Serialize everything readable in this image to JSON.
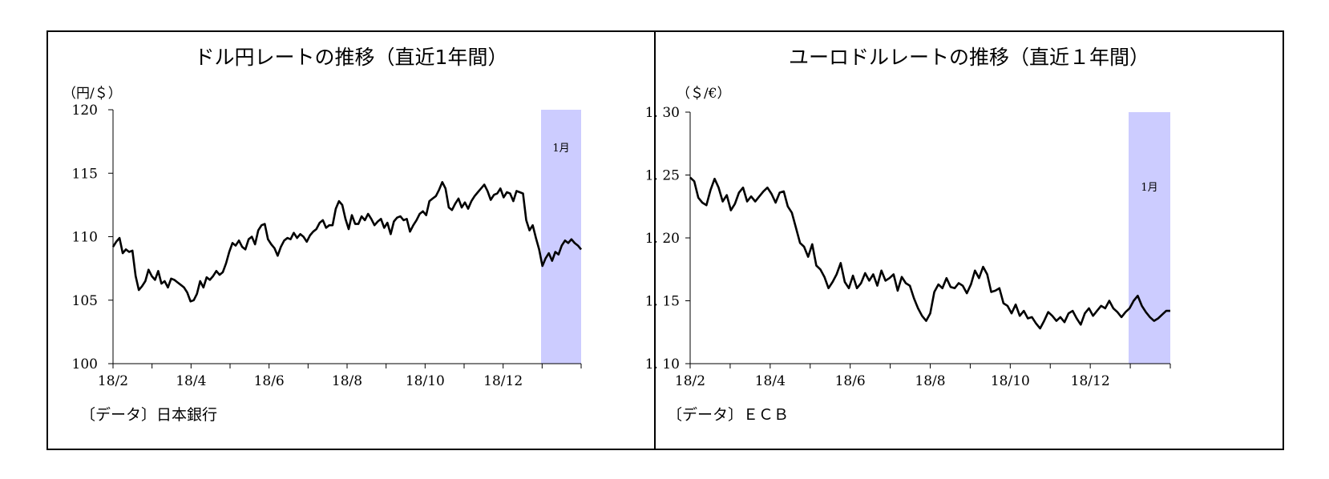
{
  "chart_data": [
    {
      "type": "line",
      "title": "ドル円レートの推移（直近1年間）",
      "unit_label": "（円/＄）",
      "source": "〔データ〕日本銀行",
      "y_ticks": [
        "120",
        "115",
        "110",
        "105",
        "100"
      ],
      "x_ticks": [
        "18/2",
        "18/4",
        "18/6",
        "18/8",
        "18/10",
        "18/12"
      ],
      "ylim": [
        100,
        120
      ],
      "highlight_label": "1月",
      "highlight_color": "#ccccff",
      "series": [
        {
          "values": [
            109.2,
            109.6,
            109.9,
            108.7,
            109.0,
            108.8,
            108.9,
            106.9,
            105.8,
            106.1,
            106.5,
            107.4,
            106.9,
            106.6,
            107.3,
            106.3,
            106.5,
            106.0,
            106.7,
            106.6,
            106.4,
            106.2,
            106.0,
            105.6,
            104.9,
            105.0,
            105.5,
            106.5,
            106.0,
            106.8,
            106.6,
            106.9,
            107.3,
            107.0,
            107.2,
            107.9,
            108.8,
            109.5,
            109.3,
            109.7,
            109.2,
            109.0,
            109.8,
            110.0,
            109.4,
            110.5,
            110.9,
            111.0,
            109.8,
            109.4,
            109.1,
            108.5,
            109.2,
            109.7,
            109.9,
            109.8,
            110.3,
            109.9,
            110.2,
            110.0,
            109.6,
            110.1,
            110.4,
            110.6,
            111.1,
            111.3,
            110.7,
            110.9,
            110.9,
            112.2,
            112.8,
            112.5,
            111.4,
            110.6,
            111.7,
            111.0,
            111.0,
            111.6,
            111.3,
            111.8,
            111.4,
            110.9,
            111.2,
            111.4,
            110.7,
            111.1,
            110.2,
            111.2,
            111.5,
            111.6,
            111.3,
            111.4,
            110.4,
            110.9,
            111.3,
            111.8,
            112.0,
            111.7,
            112.8,
            113.0,
            113.2,
            113.7,
            114.3,
            113.8,
            112.3,
            112.1,
            112.6,
            113.0,
            112.3,
            112.7,
            112.2,
            112.8,
            113.2,
            113.5,
            113.8,
            114.1,
            113.6,
            112.9,
            113.3,
            113.4,
            113.8,
            113.1,
            113.5,
            113.4,
            112.8,
            113.6,
            113.5,
            113.4,
            111.3,
            110.5,
            110.9,
            109.9,
            109.0,
            107.7,
            108.3,
            108.7,
            108.1,
            108.8,
            108.6,
            109.3,
            109.7,
            109.5,
            109.8,
            109.5,
            109.3,
            109.0
          ]
        }
      ]
    },
    {
      "type": "line",
      "title": "ユーロドルレートの推移（直近１年間）",
      "unit_label": "（＄/€）",
      "source": "〔データ〕ＥＣＢ",
      "y_ticks": [
        "1. 30",
        "1. 25",
        "1. 20",
        "1. 15",
        "1. 10"
      ],
      "x_ticks": [
        "18/2",
        "18/4",
        "18/6",
        "18/8",
        "18/10",
        "18/12"
      ],
      "ylim": [
        1.1,
        1.3
      ],
      "highlight_label": "1月",
      "highlight_color": "#ccccff",
      "series": [
        {
          "values": [
            1.248,
            1.245,
            1.232,
            1.228,
            1.226,
            1.238,
            1.247,
            1.24,
            1.229,
            1.234,
            1.222,
            1.227,
            1.236,
            1.24,
            1.229,
            1.233,
            1.229,
            1.233,
            1.237,
            1.24,
            1.235,
            1.228,
            1.236,
            1.237,
            1.225,
            1.22,
            1.208,
            1.196,
            1.193,
            1.185,
            1.195,
            1.178,
            1.175,
            1.169,
            1.16,
            1.165,
            1.171,
            1.18,
            1.165,
            1.16,
            1.17,
            1.16,
            1.164,
            1.172,
            1.166,
            1.171,
            1.162,
            1.174,
            1.166,
            1.168,
            1.171,
            1.158,
            1.169,
            1.164,
            1.162,
            1.152,
            1.144,
            1.138,
            1.134,
            1.14,
            1.157,
            1.163,
            1.16,
            1.168,
            1.161,
            1.16,
            1.164,
            1.162,
            1.156,
            1.163,
            1.174,
            1.168,
            1.177,
            1.171,
            1.157,
            1.158,
            1.16,
            1.148,
            1.146,
            1.14,
            1.147,
            1.138,
            1.142,
            1.136,
            1.137,
            1.132,
            1.128,
            1.134,
            1.141,
            1.138,
            1.134,
            1.137,
            1.133,
            1.14,
            1.142,
            1.136,
            1.131,
            1.14,
            1.144,
            1.138,
            1.142,
            1.146,
            1.144,
            1.15,
            1.144,
            1.141,
            1.137,
            1.141,
            1.144,
            1.15,
            1.154,
            1.146,
            1.141,
            1.137,
            1.134,
            1.136,
            1.139,
            1.142,
            1.142
          ]
        }
      ]
    }
  ]
}
